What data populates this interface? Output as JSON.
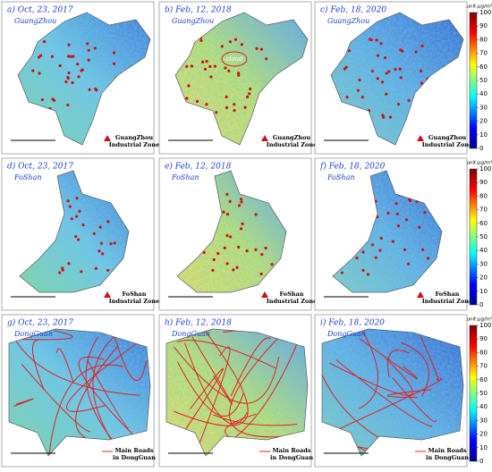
{
  "rows": [
    {
      "legend": [
        "GuangZhou",
        "Industrial Zone"
      ],
      "panels": [
        {
          "label": "a) Oct, 23, 2017",
          "city": "GuangZhou"
        },
        {
          "label": "b) Feb, 12, 2018",
          "city": "GuangZhou",
          "note": "cloud"
        },
        {
          "label": "c) Feb, 18, 2020",
          "city": "GuangZhou"
        }
      ],
      "colorbar": {
        "title": "unit:μg/m³",
        "range": [
          0,
          100
        ],
        "ticks": [
          0,
          10,
          20,
          30,
          40,
          50,
          60,
          70,
          80,
          90,
          100
        ]
      }
    },
    {
      "legend": [
        "FoShan",
        "Industrial Zone"
      ],
      "panels": [
        {
          "label": "d) Oct, 23, 2017",
          "city": "FoShan"
        },
        {
          "label": "e) Feb, 12, 2018",
          "city": "FoShan"
        },
        {
          "label": "f) Feb, 18, 2020",
          "city": "FoShan"
        }
      ],
      "colorbar": {
        "title": "unit:μg/m³",
        "range": [
          0,
          100
        ],
        "ticks": [
          0,
          10,
          20,
          30,
          40,
          50,
          60,
          70,
          80,
          90,
          100
        ]
      }
    },
    {
      "legend": [
        "Main Roads",
        "in DongGuan"
      ],
      "panels": [
        {
          "label": "g) Oct, 23, 2017",
          "city": "DongGuan"
        },
        {
          "label": "h) Feb, 12, 2018",
          "city": "DongGuan"
        },
        {
          "label": "i) Feb, 18, 2020",
          "city": "DongGuan"
        }
      ],
      "colorbar": {
        "title": "unit:μg/m³",
        "range": [
          0,
          100
        ],
        "ticks": [
          0,
          10,
          20,
          30,
          40,
          50,
          60,
          70,
          80,
          90,
          100
        ]
      }
    }
  ]
}
